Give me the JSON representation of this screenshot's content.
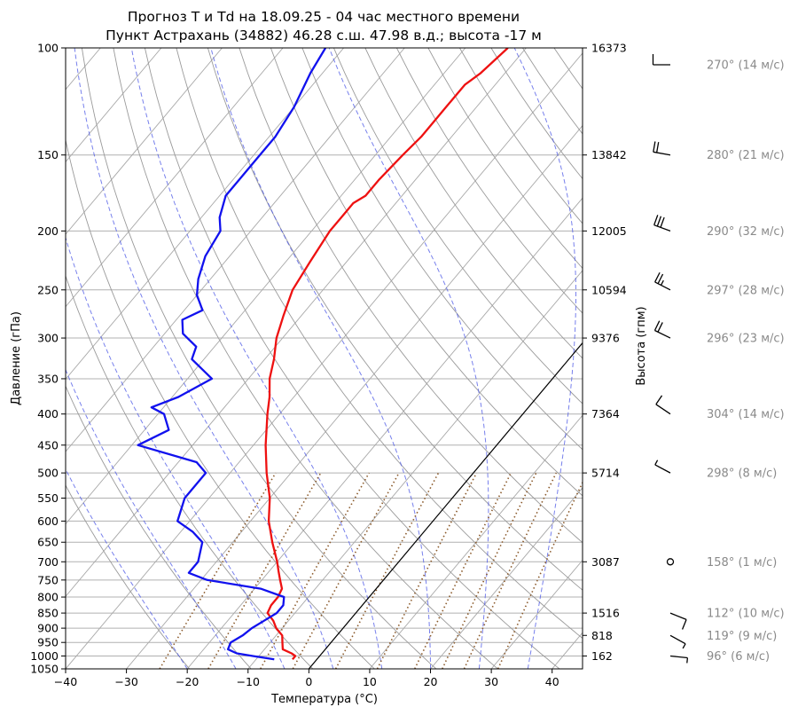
{
  "chart_data": {
    "type": "line",
    "title": "Прогноз T и Td на 18.09.25 - 04 час местного времени",
    "subtitle": "Пункт Астрахань (34882) 46.28 с.ш. 47.98 в.д.; высота -17 м",
    "xlabel": "Температура (°C)",
    "ylabel": "Давление (гПа)",
    "y2label": "Высота (гпм)",
    "xlim": [
      -40,
      45
    ],
    "ylim": [
      1050,
      100
    ],
    "y_scale": "log",
    "grid": true,
    "x_ticks": [
      "−40",
      "−30",
      "−20",
      "−10",
      "0",
      "10",
      "20",
      "30",
      "40"
    ],
    "y_ticks": [
      {
        "p": 100,
        "label": "100"
      },
      {
        "p": 150,
        "label": "150"
      },
      {
        "p": 200,
        "label": "200"
      },
      {
        "p": 250,
        "label": "250"
      },
      {
        "p": 300,
        "label": "300"
      },
      {
        "p": 350,
        "label": "350"
      },
      {
        "p": 400,
        "label": "400"
      },
      {
        "p": 450,
        "label": "450"
      },
      {
        "p": 500,
        "label": "500"
      },
      {
        "p": 550,
        "label": "550"
      },
      {
        "p": 600,
        "label": "600"
      },
      {
        "p": 650,
        "label": "650"
      },
      {
        "p": 700,
        "label": "700"
      },
      {
        "p": 750,
        "label": "750"
      },
      {
        "p": 800,
        "label": "800"
      },
      {
        "p": 850,
        "label": "850"
      },
      {
        "p": 900,
        "label": "900"
      },
      {
        "p": 950,
        "label": "950"
      },
      {
        "p": 1000,
        "label": "1000"
      },
      {
        "p": 1050,
        "label": "1050"
      }
    ],
    "height_ticks": [
      {
        "p": 100,
        "label": "16373"
      },
      {
        "p": 150,
        "label": "13842"
      },
      {
        "p": 200,
        "label": "12005"
      },
      {
        "p": 250,
        "label": "10594"
      },
      {
        "p": 300,
        "label": "9376"
      },
      {
        "p": 400,
        "label": "7364"
      },
      {
        "p": 500,
        "label": "5714"
      },
      {
        "p": 700,
        "label": "3087"
      },
      {
        "p": 850,
        "label": "1516"
      },
      {
        "p": 925,
        "label": "818"
      },
      {
        "p": 1000,
        "label": "162"
      }
    ],
    "series": [
      {
        "key": "temperature",
        "color": "#ee1111",
        "points": [
          [
            1013,
            -4.0
          ],
          [
            1000,
            -4.0
          ],
          [
            990,
            -5.0
          ],
          [
            975,
            -7.0
          ],
          [
            950,
            -8.0
          ],
          [
            925,
            -9.0
          ],
          [
            900,
            -11.0
          ],
          [
            875,
            -12.5
          ],
          [
            850,
            -14.5
          ],
          [
            825,
            -15.0
          ],
          [
            800,
            -15.0
          ],
          [
            775,
            -15.5
          ],
          [
            750,
            -17.0
          ],
          [
            725,
            -18.5
          ],
          [
            700,
            -20.0
          ],
          [
            650,
            -23.5
          ],
          [
            600,
            -27.0
          ],
          [
            550,
            -30.0
          ],
          [
            500,
            -34.0
          ],
          [
            450,
            -38.0
          ],
          [
            400,
            -42.0
          ],
          [
            375,
            -44.0
          ],
          [
            350,
            -46.5
          ],
          [
            325,
            -48.5
          ],
          [
            300,
            -51.0
          ],
          [
            275,
            -53.0
          ],
          [
            250,
            -55.0
          ],
          [
            225,
            -56.0
          ],
          [
            200,
            -57.0
          ],
          [
            190,
            -57.0
          ],
          [
            180,
            -57.0
          ],
          [
            175,
            -56.0
          ],
          [
            165,
            -56.0
          ],
          [
            150,
            -55.5
          ],
          [
            140,
            -55.0
          ],
          [
            130,
            -55.0
          ],
          [
            125,
            -55.0
          ],
          [
            115,
            -55.0
          ],
          [
            110,
            -54.0
          ],
          [
            100,
            -53.0
          ]
        ]
      },
      {
        "key": "dewpoint",
        "color": "#1111ee",
        "points": [
          [
            1013,
            -7.0
          ],
          [
            1000,
            -11.0
          ],
          [
            990,
            -14.0
          ],
          [
            975,
            -16.0
          ],
          [
            950,
            -16.5
          ],
          [
            925,
            -15.5
          ],
          [
            900,
            -15.0
          ],
          [
            875,
            -14.0
          ],
          [
            850,
            -13.0
          ],
          [
            825,
            -13.0
          ],
          [
            800,
            -14.0
          ],
          [
            775,
            -19.0
          ],
          [
            750,
            -29.0
          ],
          [
            730,
            -33.0
          ],
          [
            700,
            -33.0
          ],
          [
            650,
            -35.0
          ],
          [
            625,
            -38.0
          ],
          [
            600,
            -42.0
          ],
          [
            550,
            -44.0
          ],
          [
            500,
            -44.0
          ],
          [
            480,
            -47.0
          ],
          [
            450,
            -59.0
          ],
          [
            425,
            -56.0
          ],
          [
            400,
            -59.0
          ],
          [
            390,
            -62.0
          ],
          [
            375,
            -59.0
          ],
          [
            350,
            -56.0
          ],
          [
            325,
            -62.0
          ],
          [
            310,
            -63.0
          ],
          [
            295,
            -67.0
          ],
          [
            280,
            -69.0
          ],
          [
            270,
            -67.0
          ],
          [
            255,
            -70.0
          ],
          [
            240,
            -72.0
          ],
          [
            220,
            -74.0
          ],
          [
            200,
            -75.0
          ],
          [
            190,
            -77.0
          ],
          [
            175,
            -79.0
          ],
          [
            165,
            -79.0
          ],
          [
            150,
            -79.0
          ],
          [
            140,
            -79.0
          ],
          [
            125,
            -80.0
          ],
          [
            110,
            -82.0
          ],
          [
            100,
            -83.0
          ]
        ]
      }
    ],
    "wind": [
      {
        "p": 110,
        "dir": 270,
        "speed": 14,
        "label": "270° (14 м/с)"
      },
      {
        "p": 150,
        "dir": 280,
        "speed": 21,
        "label": "280° (21 м/с)"
      },
      {
        "p": 200,
        "dir": 290,
        "speed": 32,
        "label": "290° (32 м/с)"
      },
      {
        "p": 250,
        "dir": 297,
        "speed": 28,
        "label": "297° (28 м/с)"
      },
      {
        "p": 300,
        "dir": 296,
        "speed": 23,
        "label": "296° (23 м/с)"
      },
      {
        "p": 400,
        "dir": 304,
        "speed": 14,
        "label": "304° (14 м/с)"
      },
      {
        "p": 500,
        "dir": 298,
        "speed": 8,
        "label": "298° (8 м/с)"
      },
      {
        "p": 700,
        "dir": 158,
        "speed": 1,
        "label": "158° (1 м/с)"
      },
      {
        "p": 850,
        "dir": 112,
        "speed": 10,
        "label": "112° (10 м/с)"
      },
      {
        "p": 925,
        "dir": 119,
        "speed": 9,
        "label": "119° (9 м/с)"
      },
      {
        "p": 1000,
        "dir": 96,
        "speed": 6,
        "label": " 96° (6 м/с)"
      }
    ]
  }
}
